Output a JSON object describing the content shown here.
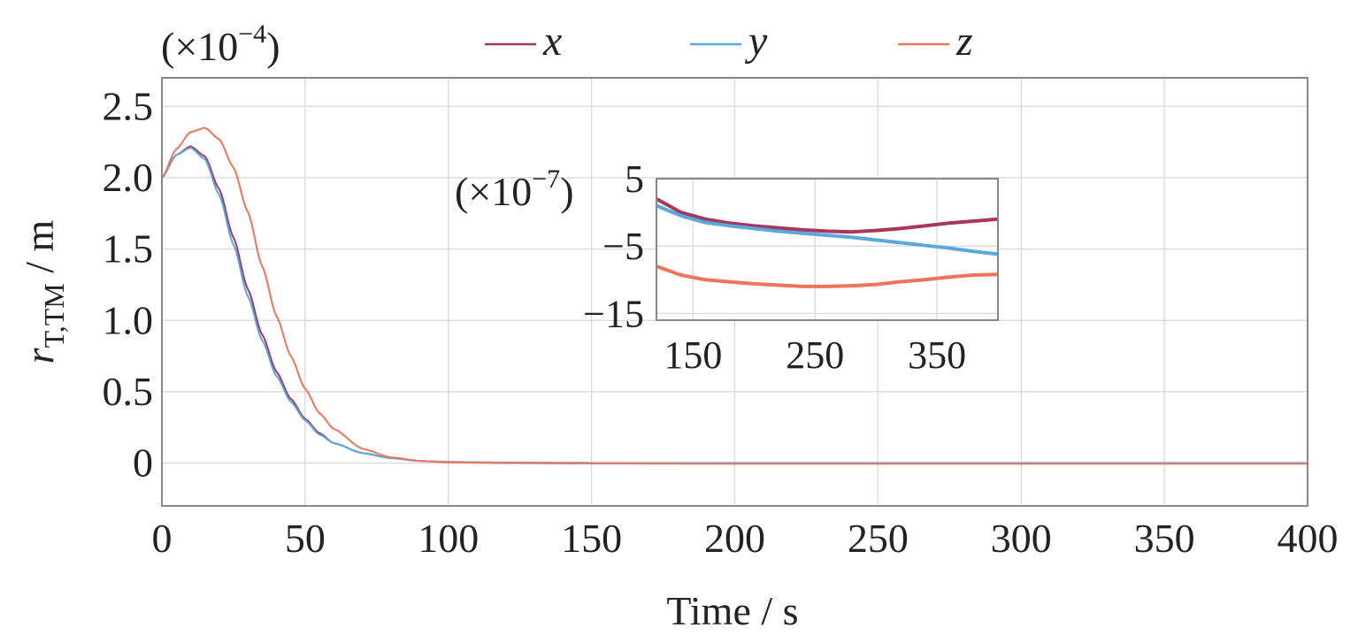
{
  "colors": {
    "x": "#a8375a",
    "y": "#5aa8e0",
    "z": "#f0745a",
    "grid": "#dddddd",
    "frame": "#888888"
  },
  "chart_data": [
    {
      "type": "line",
      "title": "",
      "xlabel": "Time / s",
      "ylabel": "r_T,TM / m",
      "ylabel_parts": {
        "main": "r",
        "sub": "T,TM",
        "unit": " / m"
      },
      "scale_note": {
        "base": "(×10",
        "exp": "−4",
        "close": ")"
      },
      "xlim": [
        0,
        400
      ],
      "ylim": [
        -0.3,
        2.7
      ],
      "xticks": [
        0,
        50,
        100,
        150,
        200,
        250,
        300,
        350,
        400
      ],
      "yticks": [
        0,
        0.5,
        1.0,
        1.5,
        2.0,
        2.5
      ],
      "ytick_labels": [
        "0",
        "0.5",
        "1.0",
        "1.5",
        "2.0",
        "2.5"
      ],
      "grid": true,
      "legend": "top",
      "series": [
        {
          "name": "x",
          "color": "#a8375a",
          "x": [
            0,
            5,
            10,
            15,
            20,
            25,
            30,
            35,
            40,
            45,
            50,
            55,
            60,
            70,
            80,
            90,
            100,
            120,
            150,
            200,
            300,
            400
          ],
          "y": [
            2.0,
            2.16,
            2.22,
            2.15,
            1.92,
            1.58,
            1.22,
            0.9,
            0.64,
            0.45,
            0.31,
            0.21,
            0.14,
            0.07,
            0.035,
            0.015,
            0.008,
            0.003,
            0.001,
            0.0,
            0.0,
            0.0
          ]
        },
        {
          "name": "y",
          "color": "#5aa8e0",
          "x": [
            0,
            5,
            10,
            15,
            20,
            25,
            30,
            35,
            40,
            45,
            50,
            55,
            60,
            70,
            80,
            90,
            100,
            120,
            150,
            200,
            300,
            400
          ],
          "y": [
            2.0,
            2.16,
            2.21,
            2.13,
            1.88,
            1.53,
            1.17,
            0.86,
            0.61,
            0.43,
            0.3,
            0.2,
            0.14,
            0.07,
            0.035,
            0.015,
            0.008,
            0.003,
            0.001,
            0.0,
            0.0,
            0.0
          ]
        },
        {
          "name": "z",
          "color": "#f0745a",
          "x": [
            0,
            5,
            10,
            15,
            20,
            25,
            30,
            35,
            40,
            45,
            50,
            55,
            60,
            70,
            80,
            90,
            100,
            120,
            150,
            200,
            300,
            400
          ],
          "y": [
            2.0,
            2.2,
            2.32,
            2.35,
            2.27,
            2.07,
            1.76,
            1.38,
            1.03,
            0.75,
            0.52,
            0.35,
            0.24,
            0.1,
            0.04,
            0.015,
            0.005,
            0.0,
            -0.003,
            -0.005,
            -0.005,
            -0.005
          ]
        }
      ]
    },
    {
      "type": "line",
      "title": "",
      "xlabel": "",
      "ylabel": "",
      "scale_note": {
        "base": "(×10",
        "exp": "−7",
        "close": ")"
      },
      "xlim": [
        120,
        400
      ],
      "ylim": [
        -16,
        5
      ],
      "xticks": [
        150,
        250,
        350
      ],
      "yticks": [
        5,
        -5,
        -15
      ],
      "ytick_labels": [
        "5",
        "−5",
        "−15"
      ],
      "grid": true,
      "series": [
        {
          "name": "x",
          "color": "#a8375a",
          "x": [
            120,
            140,
            160,
            180,
            200,
            220,
            240,
            260,
            280,
            300,
            320,
            340,
            360,
            380,
            400
          ],
          "y": [
            2.0,
            0.0,
            -1.0,
            -1.6,
            -2.0,
            -2.3,
            -2.6,
            -2.8,
            -2.9,
            -2.7,
            -2.4,
            -2.0,
            -1.6,
            -1.3,
            -1.0
          ]
        },
        {
          "name": "y",
          "color": "#5aa8e0",
          "x": [
            120,
            140,
            160,
            180,
            200,
            220,
            240,
            260,
            280,
            300,
            320,
            340,
            360,
            380,
            400
          ],
          "y": [
            1.0,
            -0.5,
            -1.5,
            -2.0,
            -2.4,
            -2.8,
            -3.1,
            -3.4,
            -3.7,
            -4.1,
            -4.5,
            -4.9,
            -5.3,
            -5.8,
            -6.2
          ]
        },
        {
          "name": "z",
          "color": "#f0745a",
          "x": [
            120,
            140,
            160,
            180,
            200,
            220,
            240,
            260,
            280,
            300,
            320,
            340,
            360,
            380,
            400
          ],
          "y": [
            -8.0,
            -9.3,
            -10.0,
            -10.3,
            -10.6,
            -10.8,
            -11.0,
            -11.0,
            -10.9,
            -10.7,
            -10.3,
            -10.0,
            -9.6,
            -9.3,
            -9.2
          ]
        }
      ]
    }
  ]
}
